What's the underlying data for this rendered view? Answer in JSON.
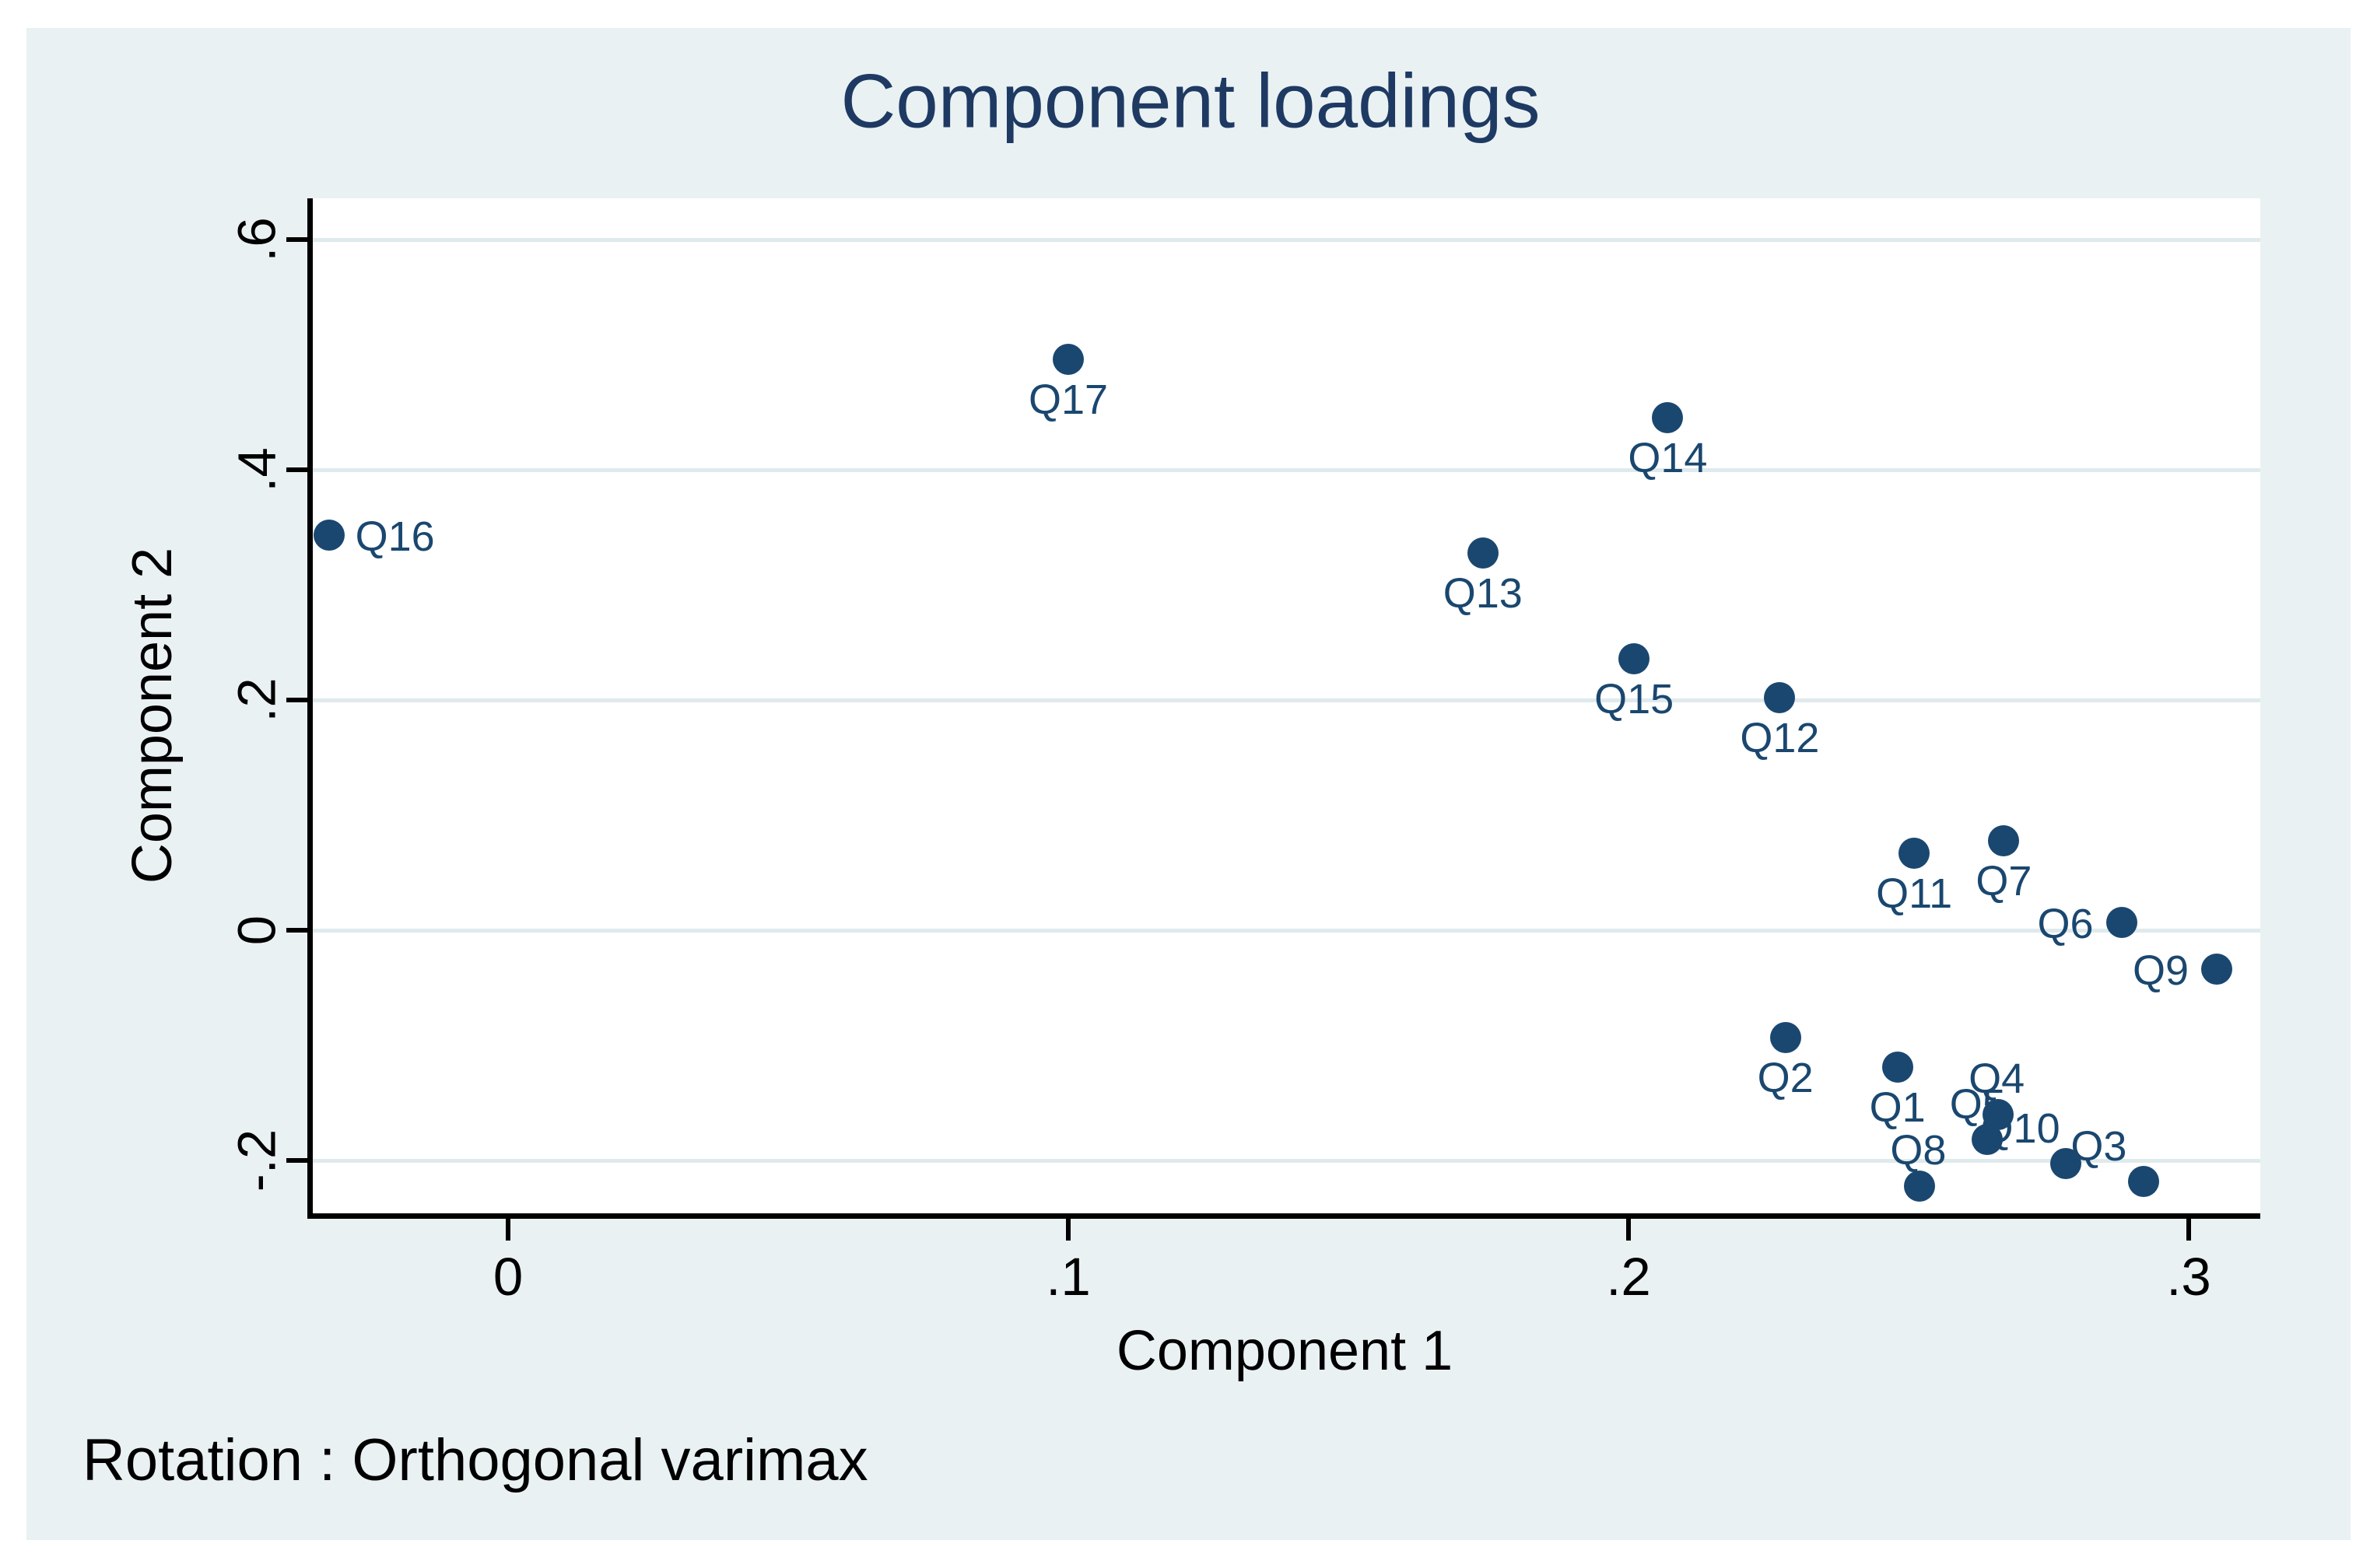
{
  "title": "Component loadings",
  "note": "Rotation : Orthogonal varimax",
  "x_axis": {
    "title": "Component 1",
    "tick_labels": [
      "0",
      ".1",
      ".2",
      ".3"
    ],
    "tick_values": [
      0,
      0.1,
      0.2,
      0.3
    ],
    "range": [
      -0.0354,
      0.3128
    ]
  },
  "y_axis": {
    "title": "Component 2",
    "tick_labels": [
      ".6",
      ".4",
      ".2",
      "0",
      "-.2"
    ],
    "tick_values": [
      0.6,
      0.4,
      0.2,
      0,
      -0.2
    ],
    "range": [
      -0.2486,
      0.636
    ]
  },
  "colors": {
    "figure_background": "#ffffff",
    "canvas_background": "#eaf1f3",
    "plot_background": "#ffffff",
    "gridline": "#dfeaed",
    "axis": "#000000",
    "marker": "#1a476f",
    "point_label": "#1a476f",
    "title": "#1e3a63",
    "text": "#000000"
  },
  "chart_data": {
    "type": "scatter",
    "title": "Component loadings",
    "xlabel": "Component 1",
    "ylabel": "Component 2",
    "note": "Rotation : Orthogonal varimax",
    "xlim": [
      -0.0354,
      0.3128
    ],
    "ylim": [
      -0.2486,
      0.636
    ],
    "grid": "horizontal-only",
    "legend": "none",
    "series": [
      {
        "name": "loadings",
        "points": [
          {
            "label": "Q1",
            "x": 0.248,
            "y": -0.119,
            "label_pos": "below"
          },
          {
            "label": "Q2",
            "x": 0.228,
            "y": -0.093,
            "label_pos": "below"
          },
          {
            "label": "Q3",
            "x": 0.292,
            "y": -0.218,
            "label_pos": "upper-left"
          },
          {
            "label": "Q4",
            "x": 0.266,
            "y": -0.16,
            "label_pos": "above"
          },
          {
            "label": "Q5",
            "x": 0.264,
            "y": -0.182,
            "label_pos": "above-left"
          },
          {
            "label": "Q6",
            "x": 0.288,
            "y": 0.007,
            "label_pos": "left"
          },
          {
            "label": "Q7",
            "x": 0.267,
            "y": 0.078,
            "label_pos": "below"
          },
          {
            "label": "Q8",
            "x": 0.252,
            "y": -0.222,
            "label_pos": "above"
          },
          {
            "label": "Q9",
            "x": 0.305,
            "y": -0.034,
            "label_pos": "left"
          },
          {
            "label": "Q10",
            "x": 0.278,
            "y": -0.203,
            "label_pos": "upper-left"
          },
          {
            "label": "Q11",
            "x": 0.251,
            "y": 0.067,
            "label_pos": "below"
          },
          {
            "label": "Q12",
            "x": 0.227,
            "y": 0.202,
            "label_pos": "below"
          },
          {
            "label": "Q13",
            "x": 0.174,
            "y": 0.328,
            "label_pos": "below"
          },
          {
            "label": "Q14",
            "x": 0.207,
            "y": 0.445,
            "label_pos": "below"
          },
          {
            "label": "Q15",
            "x": 0.201,
            "y": 0.236,
            "label_pos": "below"
          },
          {
            "label": "Q16",
            "x": -0.032,
            "y": 0.343,
            "label_pos": "right"
          },
          {
            "label": "Q17",
            "x": 0.1,
            "y": 0.496,
            "label_pos": "below"
          }
        ]
      }
    ]
  }
}
